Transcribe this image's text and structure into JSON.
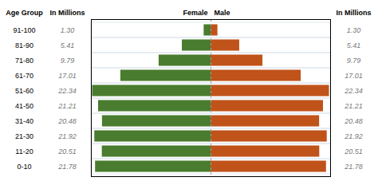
{
  "chart_data": {
    "type": "bar",
    "orientation": "horizontal",
    "ylabel": "Age Group",
    "annotations": [
      "In Millions",
      "In Millions"
    ],
    "categories": [
      "91-100",
      "81-90",
      "71-80",
      "61-70",
      "51-60",
      "41-50",
      "31-40",
      "21-30",
      "11-20",
      "0-10"
    ],
    "series": [
      {
        "name": "Female",
        "color": "#4a7c2f",
        "values": [
          1.3,
          5.41,
          9.79,
          17.01,
          22.34,
          21.21,
          20.48,
          21.92,
          20.51,
          21.78
        ],
        "value_labels": [
          "1.30",
          "5.41",
          "9.79",
          "17.01",
          "22.34",
          "21.21",
          "20.48",
          "21.92",
          "20.51",
          "21.78"
        ]
      },
      {
        "name": "Male",
        "color": "#c0531a",
        "values": [
          1.3,
          5.41,
          9.79,
          17.01,
          22.34,
          21.21,
          20.48,
          21.92,
          20.51,
          21.78
        ],
        "value_labels": [
          "1.30",
          "5.41",
          "9.79",
          "17.01",
          "22.34",
          "21.21",
          "20.48",
          "21.92",
          "20.51",
          "21.78"
        ]
      }
    ],
    "xlim": [
      -22.5634,
      22.5634
    ],
    "xticks": [],
    "tick_labels": "y",
    "data_labels": true,
    "grid": true
  }
}
